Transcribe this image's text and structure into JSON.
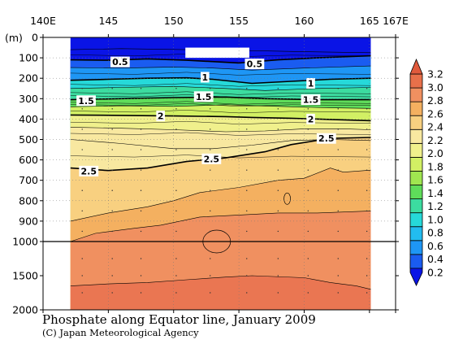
{
  "chart_data": {
    "type": "heatmap",
    "title": "Phosphate along Equator line, January 2009",
    "credit": "(C) Japan Meteorological Agency",
    "x_axis": {
      "range": [
        140,
        167
      ],
      "ticks": [
        140,
        145,
        150,
        155,
        160,
        165,
        167
      ],
      "tick_labels": [
        "140E",
        "145",
        "150",
        "155",
        "160",
        "165",
        "167E"
      ],
      "data_extent": [
        142.1,
        165.1
      ]
    },
    "y_axis": {
      "unit_label": "(m)",
      "reversed": true,
      "scale": "piecewise-linear (0-1000 m upper panel, 1000-2000 m lower panel)",
      "ticks": [
        0,
        100,
        200,
        300,
        400,
        500,
        600,
        700,
        800,
        900,
        1000,
        1500,
        2000
      ],
      "tick_labels": [
        "0",
        "100",
        "200",
        "300",
        "400",
        "500",
        "600",
        "700",
        "800",
        "900",
        "1000",
        "1500",
        "2000"
      ]
    },
    "colorbar": {
      "levels": [
        0.2,
        0.4,
        0.6,
        0.8,
        1.0,
        1.2,
        1.4,
        1.6,
        1.8,
        2.0,
        2.2,
        2.4,
        2.6,
        2.8,
        3.0,
        3.2
      ],
      "level_labels": [
        "0.2",
        "0.4",
        "0.6",
        "0.8",
        "1.0",
        "1.2",
        "1.4",
        "1.6",
        "1.8",
        "2.0",
        "2.2",
        "2.4",
        "2.6",
        "2.8",
        "3.0",
        "3.2"
      ],
      "colors": [
        "#0a14e6",
        "#1a5cf0",
        "#1e96f5",
        "#22bcf0",
        "#26d9d9",
        "#3cdca0",
        "#5fdc5a",
        "#a0e650",
        "#d2f064",
        "#f0f08c",
        "#f8e8a0",
        "#f8d080",
        "#f4b060",
        "#f09060",
        "#e8704a",
        "#e05a3c"
      ]
    },
    "contour_labels": [
      {
        "text": "0.5",
        "lon": 145.9,
        "depth": 120
      },
      {
        "text": "0.5",
        "lon": 156.2,
        "depth": 130
      },
      {
        "text": "1",
        "lon": 152.4,
        "depth": 195
      },
      {
        "text": "1",
        "lon": 160.5,
        "depth": 225
      },
      {
        "text": "1.5",
        "lon": 143.3,
        "depth": 310
      },
      {
        "text": "1.5",
        "lon": 152.3,
        "depth": 290
      },
      {
        "text": "1.5",
        "lon": 160.5,
        "depth": 305
      },
      {
        "text": "2",
        "lon": 149.0,
        "depth": 385
      },
      {
        "text": "2",
        "lon": 160.5,
        "depth": 400
      },
      {
        "text": "2.5",
        "lon": 161.7,
        "depth": 495
      },
      {
        "text": "2.5",
        "lon": 152.9,
        "depth": 595
      },
      {
        "text": "2.5",
        "lon": 143.5,
        "depth": 655
      }
    ],
    "missing_region": {
      "lon": [
        150.9,
        155.8
      ],
      "depth": [
        50,
        100
      ]
    },
    "values_note": "Phosphate (µmol/kg): ~0.2-0.5 in the top 100 m, rising through 1 near 200 m, 1.5 near 300 m, 2 near 390 m and 2.5 near 500-650 m, reaching about 2.8-3.0 between 800 and 2000 m.",
    "contours": [
      {
        "level": 0.3,
        "points": [
          [
            142.1,
            60
          ],
          [
            146,
            55
          ],
          [
            151,
            60
          ],
          [
            156,
            65
          ],
          [
            160,
            70
          ],
          [
            165.1,
            75
          ]
        ]
      },
      {
        "level": 0.5,
        "points": [
          [
            142.1,
            110
          ],
          [
            145,
            112
          ],
          [
            148,
            105
          ],
          [
            151,
            112
          ],
          [
            155,
            125
          ],
          [
            158,
            110
          ],
          [
            161,
            100
          ],
          [
            165.1,
            90
          ]
        ]
      },
      {
        "level": 0.7,
        "points": [
          [
            142.1,
            148
          ],
          [
            146,
            150
          ],
          [
            150,
            145
          ],
          [
            153,
            150
          ],
          [
            156,
            160
          ],
          [
            160,
            150
          ],
          [
            165.1,
            140
          ]
        ]
      },
      {
        "level": 1.0,
        "points": [
          [
            142.1,
            210
          ],
          [
            145,
            205
          ],
          [
            148,
            200
          ],
          [
            151,
            198
          ],
          [
            153,
            205
          ],
          [
            156,
            225
          ],
          [
            159,
            215
          ],
          [
            162,
            205
          ],
          [
            165.1,
            200
          ]
        ]
      },
      {
        "level": 1.2,
        "points": [
          [
            142.1,
            250
          ],
          [
            146,
            245
          ],
          [
            150,
            240
          ],
          [
            154,
            250
          ],
          [
            157,
            260
          ],
          [
            161,
            250
          ],
          [
            165.1,
            245
          ]
        ]
      },
      {
        "level": 1.5,
        "points": [
          [
            142.1,
            305
          ],
          [
            146,
            300
          ],
          [
            150,
            295
          ],
          [
            154,
            292
          ],
          [
            157,
            300
          ],
          [
            161,
            305
          ],
          [
            165.1,
            305
          ]
        ]
      },
      {
        "level": 1.8,
        "points": [
          [
            142.1,
            340
          ],
          [
            146,
            335
          ],
          [
            150,
            338
          ],
          [
            154,
            330
          ],
          [
            158,
            338
          ],
          [
            162,
            345
          ],
          [
            165.1,
            348
          ]
        ]
      },
      {
        "level": 2.0,
        "points": [
          [
            142.1,
            380
          ],
          [
            146,
            382
          ],
          [
            150,
            385
          ],
          [
            154,
            388
          ],
          [
            156,
            392
          ],
          [
            159,
            396
          ],
          [
            162,
            402
          ],
          [
            165.1,
            408
          ]
        ]
      },
      {
        "level": 2.2,
        "points": [
          [
            142.1,
            440
          ],
          [
            146,
            445
          ],
          [
            150,
            452
          ],
          [
            154,
            462
          ],
          [
            157,
            458
          ],
          [
            160,
            448
          ],
          [
            163,
            448
          ],
          [
            165.1,
            452
          ]
        ]
      },
      {
        "level": 2.3,
        "points": [
          [
            142.1,
            500
          ],
          [
            146,
            520
          ],
          [
            150,
            545
          ],
          [
            153,
            545
          ],
          [
            156,
            528
          ],
          [
            159,
            505
          ],
          [
            162,
            500
          ],
          [
            165.1,
            505
          ]
        ]
      },
      {
        "level": 2.5,
        "points": [
          [
            142.1,
            640
          ],
          [
            145,
            652
          ],
          [
            148,
            640
          ],
          [
            151,
            608
          ],
          [
            154,
            590
          ],
          [
            157,
            560
          ],
          [
            159,
            525
          ],
          [
            162,
            495
          ],
          [
            165.1,
            490
          ]
        ]
      },
      {
        "level": 2.7,
        "points": [
          [
            142.1,
            900
          ],
          [
            145,
            860
          ],
          [
            148,
            830
          ],
          [
            150,
            800
          ],
          [
            152,
            760
          ],
          [
            155,
            735
          ],
          [
            158,
            700
          ],
          [
            160,
            690
          ],
          [
            162,
            640
          ],
          [
            163,
            660
          ],
          [
            165.1,
            650
          ]
        ]
      },
      {
        "level": 2.8,
        "points": [
          [
            142.1,
            1000
          ],
          [
            144,
            960
          ],
          [
            147,
            935
          ],
          [
            149,
            920
          ],
          [
            152,
            880
          ],
          [
            155,
            870
          ],
          [
            158,
            860
          ],
          [
            161,
            860
          ],
          [
            165.1,
            850
          ]
        ]
      },
      {
        "level": 2.8,
        "points": [
          [
            142.1,
            1650
          ],
          [
            145,
            1620
          ],
          [
            148,
            1600
          ],
          [
            151,
            1560
          ],
          [
            154,
            1520
          ],
          [
            156,
            1500
          ],
          [
            160,
            1530
          ],
          [
            162,
            1600
          ],
          [
            164,
            1650
          ],
          [
            165.1,
            1700
          ]
        ]
      }
    ]
  }
}
